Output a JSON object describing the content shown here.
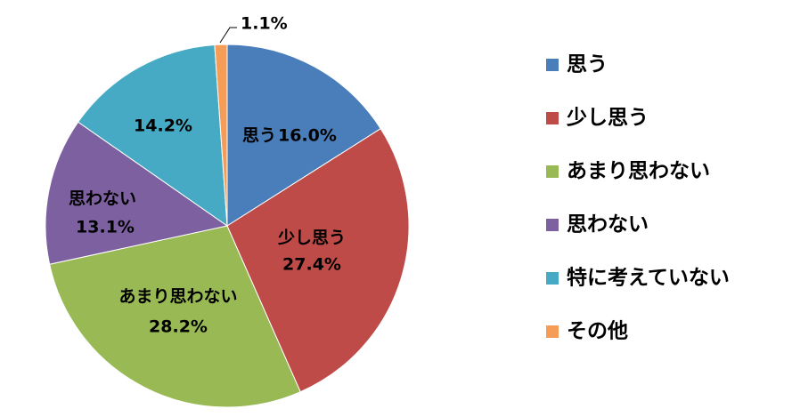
{
  "chart_data": {
    "type": "pie",
    "categories": [
      "思う",
      "少し思う",
      "あまり思わない",
      "思わない",
      "特に考えていない",
      "その他"
    ],
    "values": [
      16.0,
      27.4,
      28.2,
      13.1,
      14.2,
      1.1
    ],
    "value_labels": [
      "16.0%",
      "27.4%",
      "28.2%",
      "13.1%",
      "14.2%",
      "1.1%"
    ],
    "colors": [
      "#4a7ebb",
      "#be4b48",
      "#98b954",
      "#7d60a0",
      "#46aac5",
      "#f59d56"
    ],
    "legend": "right"
  }
}
